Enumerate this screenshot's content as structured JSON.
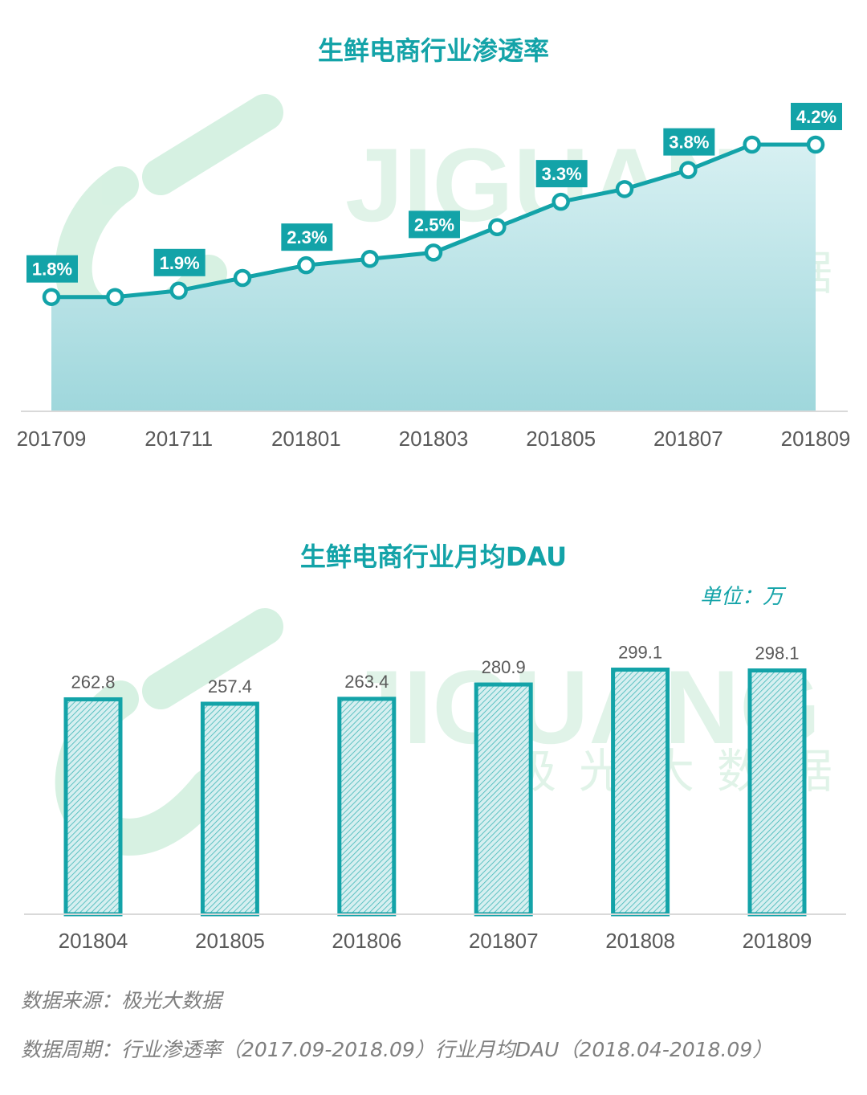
{
  "chart_data": [
    {
      "type": "area",
      "title": "生鲜电商行业渗透率",
      "x": [
        "201709",
        "201710",
        "201711",
        "201712",
        "201801",
        "201802",
        "201803",
        "201804",
        "201805",
        "201806",
        "201807",
        "201808",
        "201809"
      ],
      "tick_labels": [
        "201709",
        "201711",
        "201801",
        "201803",
        "201805",
        "201807",
        "201809"
      ],
      "values": [
        1.8,
        1.8,
        1.9,
        2.1,
        2.3,
        2.4,
        2.5,
        2.9,
        3.3,
        3.5,
        3.8,
        4.2,
        4.2
      ],
      "data_labels": [
        {
          "x": "201709",
          "label": "1.8%"
        },
        {
          "x": "201711",
          "label": "1.9%"
        },
        {
          "x": "201801",
          "label": "2.3%"
        },
        {
          "x": "201803",
          "label": "2.5%"
        },
        {
          "x": "201805",
          "label": "3.3%"
        },
        {
          "x": "201807",
          "label": "3.8%"
        },
        {
          "x": "201809",
          "label": "4.2%"
        }
      ],
      "xlabel": "",
      "ylabel": "",
      "unit": "%",
      "grid": false,
      "legend": "none"
    },
    {
      "type": "bar",
      "title": "生鲜电商行业月均DAU",
      "unit_label": "单位：万",
      "categories": [
        "201804",
        "201805",
        "201806",
        "201807",
        "201808",
        "201809"
      ],
      "values": [
        262.8,
        257.4,
        263.4,
        280.9,
        299.1,
        298.1
      ],
      "xlabel": "",
      "ylabel": "",
      "grid": false,
      "legend": "none"
    }
  ],
  "watermark": {
    "text": "JIGUANG",
    "subtext": "极光大数据"
  },
  "colors": {
    "accent": "#13a3a8",
    "line": "#13a3a8",
    "area_top": "#d7f0f2",
    "area_bottom": "#9fd7dc",
    "label_bg": "#13a3a8",
    "watermark": "#d9f1e3"
  },
  "footer": {
    "source": "数据来源：极光大数据",
    "period": "数据周期：行业渗透率（2017.09-2018.09）行业月均DAU（2018.04-2018.09）"
  }
}
